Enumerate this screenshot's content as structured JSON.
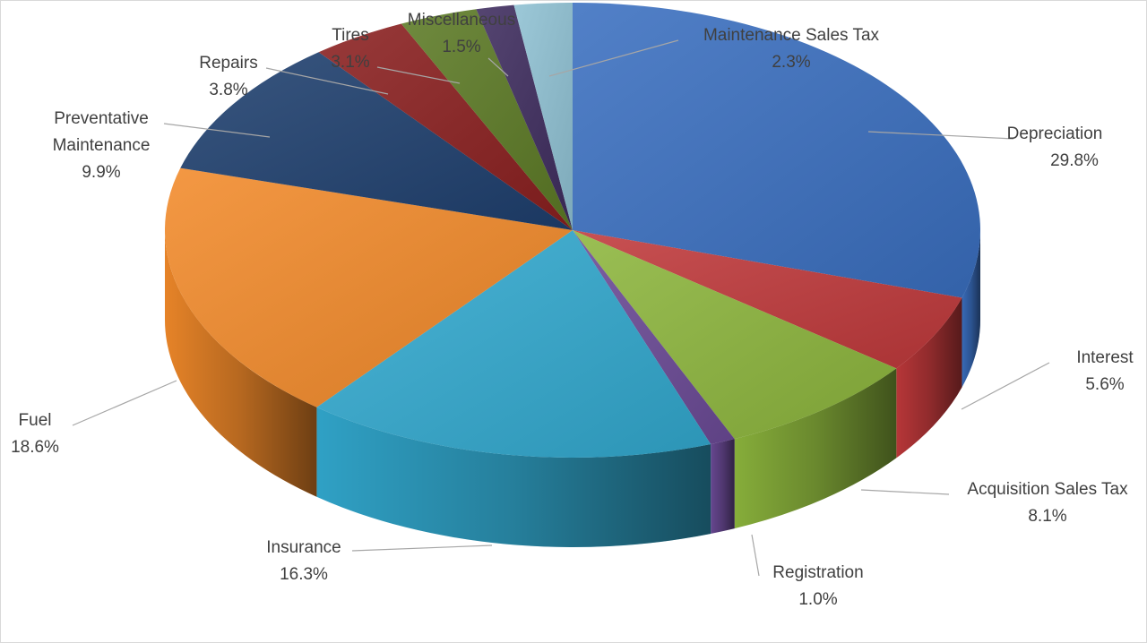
{
  "chart_data": {
    "type": "pie",
    "title": "",
    "style": "3d",
    "start_angle_deg": 90,
    "direction": "clockwise",
    "value_unit": "%",
    "slices": [
      {
        "label": "Depreciation",
        "value": 29.8,
        "value_label": "29.8%",
        "color": "#3a6fc0"
      },
      {
        "label": "Interest",
        "value": 5.6,
        "value_label": "5.6%",
        "color": "#c0393b"
      },
      {
        "label": "Acquisition Sales Tax",
        "value": 8.1,
        "value_label": "8.1%",
        "color": "#8db63d"
      },
      {
        "label": "Registration",
        "value": 1.0,
        "value_label": "1.0%",
        "color": "#6b4a96"
      },
      {
        "label": "Insurance",
        "value": 16.3,
        "value_label": "16.3%",
        "color": "#32a9cf"
      },
      {
        "label": "Fuel",
        "value": 18.6,
        "value_label": "18.6%",
        "color": "#f28a2a"
      },
      {
        "label": "Preventative Maintenance",
        "value": 9.9,
        "value_label": "9.9%",
        "color": "#1e3f6e"
      },
      {
        "label": "Repairs",
        "value": 3.8,
        "value_label": "3.8%",
        "color": "#8a1f1f"
      },
      {
        "label": "Tires",
        "value": 3.1,
        "value_label": "3.1%",
        "color": "#5c7a25"
      },
      {
        "label": "Miscellaneous",
        "value": 1.5,
        "value_label": "1.5%",
        "color": "#3e2c5e"
      },
      {
        "label": "Maintenance Sales Tax",
        "value": 2.3,
        "value_label": "2.3%",
        "color": "#8fc1d3"
      }
    ]
  }
}
